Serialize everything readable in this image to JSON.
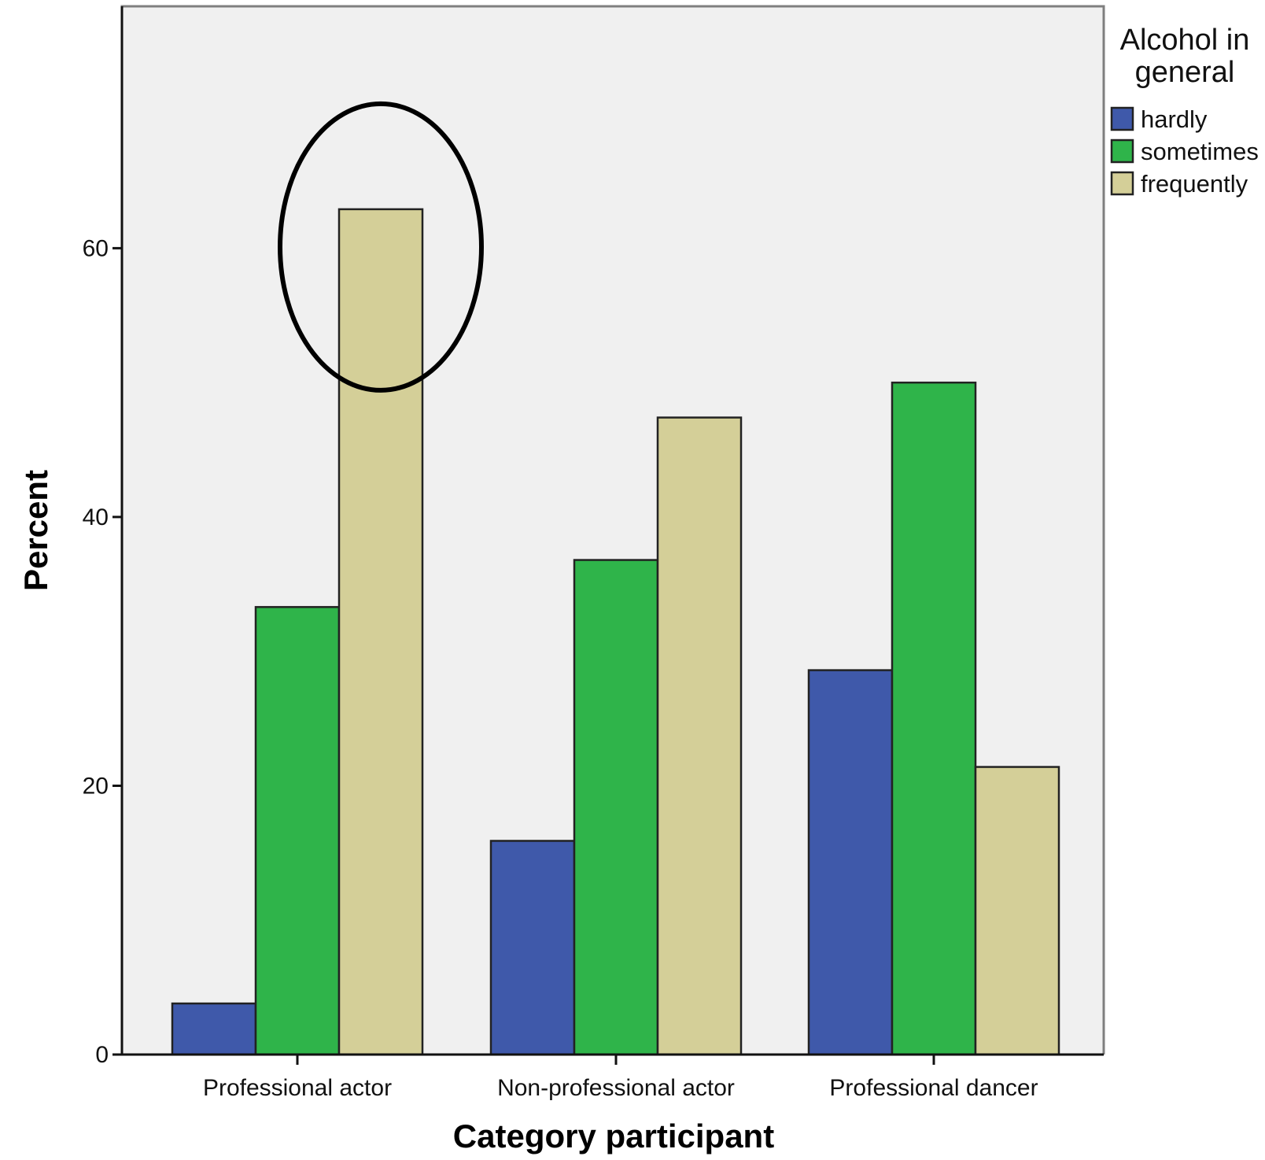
{
  "chart_data": {
    "type": "bar",
    "title": "",
    "xlabel": "Category participant",
    "ylabel": "Percent",
    "categories": [
      "Professional actor",
      "Non-professional actor",
      "Professional dancer"
    ],
    "series": [
      {
        "name": "hardly",
        "values": [
          3.8,
          15.9,
          28.6
        ],
        "color": "#3f59aa"
      },
      {
        "name": "sometimes",
        "values": [
          33.3,
          36.8,
          50.0
        ],
        "color": "#2fb44a"
      },
      {
        "name": "frequently",
        "values": [
          62.9,
          47.4,
          21.4
        ],
        "color": "#d4cf98"
      }
    ],
    "ylim": [
      0,
      78
    ],
    "yticks": [
      0,
      20,
      40,
      60
    ],
    "legend": {
      "title_lines": [
        "Alcohol in",
        "general"
      ],
      "placement": "right"
    },
    "annotations": [
      {
        "type": "ellipse",
        "category": "Professional actor",
        "series": "frequently",
        "note": ""
      }
    ],
    "colors": {
      "plot_background": "#f0f0f0",
      "frame": "#7f7f7f",
      "bar_outline": "#222222"
    },
    "grid": false
  }
}
